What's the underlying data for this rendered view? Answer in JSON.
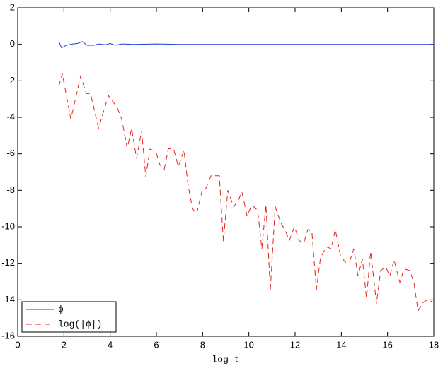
{
  "chart_data": {
    "type": "line",
    "xlabel": "log t",
    "xlim": [
      0,
      18
    ],
    "xticks": [
      0,
      2,
      4,
      6,
      8,
      10,
      12,
      14,
      16,
      18
    ],
    "ylim": [
      -16,
      2
    ],
    "yticks": [
      -16,
      -14,
      -12,
      -10,
      -8,
      -6,
      -4,
      -2,
      0,
      2
    ],
    "legend": "lower left",
    "series": [
      {
        "name": "ϕ",
        "color": "#1f3fd6",
        "style": "solid",
        "x": [
          1.8,
          1.9,
          2.1,
          2.4,
          2.6,
          2.8,
          3.0,
          3.3,
          3.5,
          3.8,
          4.0,
          4.2,
          4.5,
          5,
          6,
          7,
          8,
          10,
          12,
          14,
          16,
          18
        ],
        "values": [
          0.1,
          -0.2,
          -0.05,
          0.02,
          0.05,
          0.15,
          -0.05,
          -0.05,
          0.02,
          -0.03,
          0.05,
          -0.05,
          0.02,
          0,
          0.02,
          0,
          0,
          0,
          0,
          0,
          0,
          0
        ]
      },
      {
        "name": "log(|ϕ|)",
        "color": "#e8211a",
        "style": "dashed",
        "x": [
          1.78,
          1.93,
          2.3,
          2.72,
          2.97,
          3.15,
          3.5,
          3.92,
          4.3,
          4.5,
          4.74,
          4.93,
          5.14,
          5.36,
          5.54,
          5.72,
          5.97,
          6.15,
          6.34,
          6.52,
          6.76,
          6.95,
          7.19,
          7.38,
          7.56,
          7.74,
          7.99,
          8.14,
          8.36,
          8.72,
          8.9,
          9.09,
          9.34,
          9.52,
          9.7,
          9.92,
          10.13,
          10.38,
          10.56,
          10.74,
          10.93,
          11.14,
          11.39,
          11.57,
          11.75,
          11.97,
          12.18,
          12.37,
          12.55,
          12.73,
          12.92,
          13.1,
          13.35,
          13.56,
          13.74,
          13.96,
          14.17,
          14.36,
          14.54,
          14.72,
          14.91,
          15.09,
          15.27,
          15.52,
          15.7,
          15.92,
          16.1,
          16.28,
          16.53,
          16.71,
          16.96,
          17.14,
          17.32,
          17.54,
          17.72,
          17.94
        ],
        "values": [
          -2.3,
          -1.6,
          -4.1,
          -1.75,
          -2.7,
          -2.7,
          -4.6,
          -2.8,
          -3.45,
          -4.1,
          -5.7,
          -4.6,
          -6.25,
          -4.75,
          -7.25,
          -5.75,
          -5.85,
          -6.6,
          -6.85,
          -5.7,
          -5.8,
          -6.7,
          -5.8,
          -7.8,
          -9.0,
          -9.3,
          -7.95,
          -7.9,
          -7.2,
          -7.2,
          -10.8,
          -8.0,
          -8.9,
          -8.6,
          -8.1,
          -9.4,
          -8.8,
          -9.1,
          -11.2,
          -8.8,
          -13.45,
          -8.9,
          -9.8,
          -10.2,
          -10.75,
          -10.0,
          -10.75,
          -10.9,
          -10.15,
          -10.3,
          -13.45,
          -11.7,
          -11.1,
          -11.2,
          -10.15,
          -11.55,
          -11.95,
          -11.9,
          -11.2,
          -12.7,
          -11.75,
          -13.9,
          -11.35,
          -14.2,
          -12.4,
          -12.2,
          -12.7,
          -11.8,
          -13.05,
          -12.3,
          -12.4,
          -13.05,
          -14.6,
          -14.15,
          -14.0,
          -14.1
        ]
      }
    ]
  }
}
